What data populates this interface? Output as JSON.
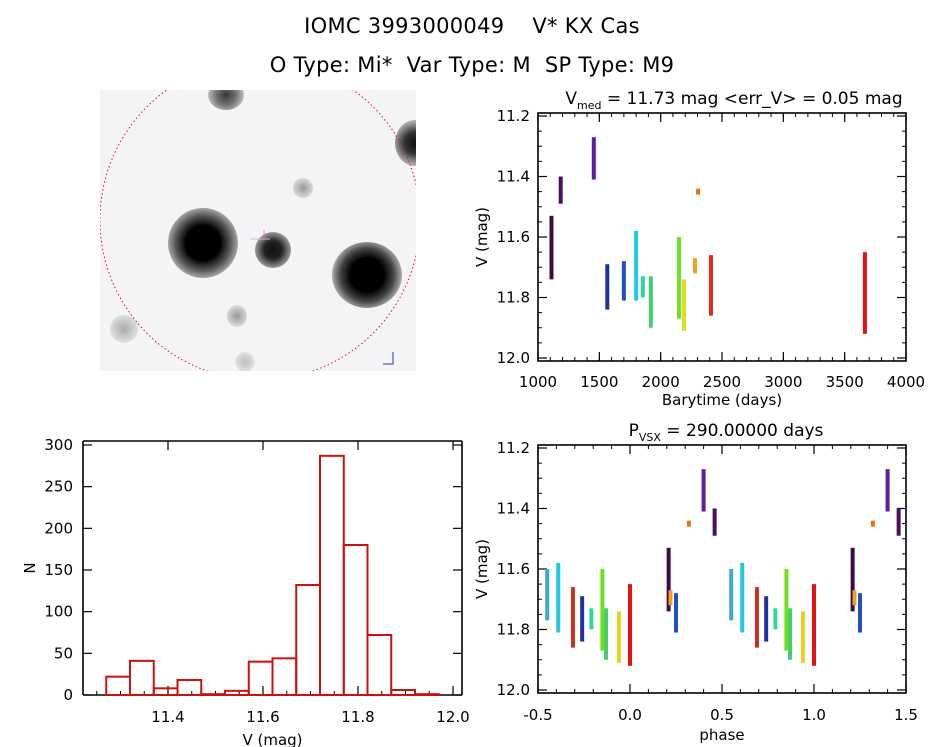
{
  "header": {
    "line1": "IOMC 3993000049    V* KX Cas",
    "line2": "O Type: Mi*  Var Type: M  SP Type: M9"
  },
  "thumbnail": {
    "description": "star field image with red aperture circle"
  },
  "chart_data": [
    {
      "id": "lightcurve",
      "type": "scatter",
      "title": "V_med = 11.73 mag <err_V> = 0.05 mag",
      "title_parts": {
        "v": "V",
        "sub": "med",
        "rest": " = 11.73 mag <err_V> = 0.05 mag"
      },
      "xlabel": "Barytime (days)",
      "ylabel": "V (mag)",
      "xlim": [
        1000,
        4000
      ],
      "ylim": [
        12.0,
        11.2
      ],
      "xticks": [
        "1000",
        "1500",
        "2000",
        "2500",
        "3000",
        "3500",
        "4000"
      ],
      "yticks": [
        "11.2",
        "11.4",
        "11.6",
        "11.8",
        "12.0"
      ],
      "series": [
        {
          "name": "season1",
          "color": "#3b0a4a",
          "x": 1110,
          "vmin": 11.53,
          "vmax": 11.74
        },
        {
          "name": "season2",
          "color": "#4a1060",
          "x": 1185,
          "vmin": 11.4,
          "vmax": 11.49
        },
        {
          "name": "season3",
          "color": "#5a1fa0",
          "x": 1455,
          "vmin": 11.27,
          "vmax": 11.41
        },
        {
          "name": "season4",
          "color": "#2030a0",
          "x": 1565,
          "vmin": 11.69,
          "vmax": 11.84
        },
        {
          "name": "season5",
          "color": "#2050c0",
          "x": 1700,
          "vmin": 11.68,
          "vmax": 11.81
        },
        {
          "name": "season6",
          "color": "#20c8e0",
          "x": 1800,
          "vmin": 11.58,
          "vmax": 11.81
        },
        {
          "name": "season7",
          "color": "#30d8a0",
          "x": 1855,
          "vmin": 11.73,
          "vmax": 11.8
        },
        {
          "name": "season8",
          "color": "#40d070",
          "x": 1920,
          "vmin": 11.73,
          "vmax": 11.9
        },
        {
          "name": "season9",
          "color": "#70e020",
          "x": 2150,
          "vmin": 11.6,
          "vmax": 11.87
        },
        {
          "name": "season10",
          "color": "#d8e020",
          "x": 2190,
          "vmin": 11.74,
          "vmax": 11.91
        },
        {
          "name": "season11",
          "color": "#f0a020",
          "x": 2280,
          "vmin": 11.67,
          "vmax": 11.72
        },
        {
          "name": "season12",
          "color": "#f07010",
          "x": 2305,
          "vmin": 11.44,
          "vmax": 11.46
        },
        {
          "name": "season13",
          "color": "#e02818",
          "x": 2410,
          "vmin": 11.66,
          "vmax": 11.86
        },
        {
          "name": "season14",
          "color": "#e81010",
          "x": 3665,
          "vmin": 11.65,
          "vmax": 11.92
        }
      ]
    },
    {
      "id": "histogram",
      "type": "bar",
      "xlabel": "V (mag)",
      "ylabel": "N",
      "xlim": [
        11.22,
        12.02
      ],
      "ylim": [
        0,
        300
      ],
      "xticks": [
        "11.4",
        "11.6",
        "11.8",
        "12.0"
      ],
      "yticks": [
        "0",
        "50",
        "100",
        "150",
        "200",
        "250",
        "300"
      ],
      "bin_start": 11.27,
      "bin_width": 0.05,
      "values": [
        22,
        41,
        8,
        18,
        1,
        5,
        40,
        44,
        132,
        287,
        180,
        72,
        6,
        1
      ],
      "bar_color": "#cc1010"
    },
    {
      "id": "phased",
      "type": "scatter",
      "title": "P_VSX = 290.00000 days",
      "title_parts": {
        "p": "P",
        "sub": "VSX",
        "rest": " = 290.00000 days"
      },
      "xlabel": "phase",
      "ylabel": "V (mag)",
      "xlim": [
        -0.5,
        1.5
      ],
      "ylim": [
        12.0,
        11.2
      ],
      "xticks": [
        "-0.5",
        "0.0",
        "0.5",
        "1.0",
        "1.5"
      ],
      "yticks": [
        "11.2",
        "11.4",
        "11.6",
        "11.8",
        "12.0"
      ],
      "series": [
        {
          "name": "season1",
          "color": "#3b0a4a",
          "phase": 0.21,
          "vmin": 11.53,
          "vmax": 11.74
        },
        {
          "name": "season2",
          "color": "#4a1060",
          "phase": 0.46,
          "vmin": 11.4,
          "vmax": 11.49
        },
        {
          "name": "season3",
          "color": "#5a1fa0",
          "phase": 0.4,
          "vmin": 11.27,
          "vmax": 11.41
        },
        {
          "name": "season4",
          "color": "#2030a0",
          "phase": 0.74,
          "vmin": 11.69,
          "vmax": 11.84
        },
        {
          "name": "season5",
          "color": "#2050c0",
          "phase": 0.25,
          "vmin": 11.68,
          "vmax": 11.81
        },
        {
          "name": "season6",
          "color": "#20c8e0",
          "phase": 0.61,
          "vmin": 11.58,
          "vmax": 11.81
        },
        {
          "name": "season6b",
          "color": "#40a8d0",
          "phase": 0.55,
          "vmin": 11.6,
          "vmax": 11.77
        },
        {
          "name": "season7",
          "color": "#30d8a0",
          "phase": 0.79,
          "vmin": 11.73,
          "vmax": 11.8
        },
        {
          "name": "season8",
          "color": "#40d070",
          "phase": 0.87,
          "vmin": 11.73,
          "vmax": 11.9
        },
        {
          "name": "season9",
          "color": "#70e020",
          "phase": 0.85,
          "vmin": 11.6,
          "vmax": 11.87
        },
        {
          "name": "season10",
          "color": "#e8d020",
          "phase": 0.94,
          "vmin": 11.74,
          "vmax": 11.91
        },
        {
          "name": "season11",
          "color": "#f0a020",
          "phase": 0.22,
          "vmin": 11.67,
          "vmax": 11.72
        },
        {
          "name": "season12",
          "color": "#f07010",
          "phase": 0.32,
          "vmin": 11.44,
          "vmax": 11.46
        },
        {
          "name": "season13",
          "color": "#c83020",
          "phase": 0.69,
          "vmin": 11.66,
          "vmax": 11.86
        },
        {
          "name": "season14",
          "color": "#e81010",
          "phase": 1.0,
          "vmin": 11.65,
          "vmax": 11.92
        }
      ]
    }
  ]
}
